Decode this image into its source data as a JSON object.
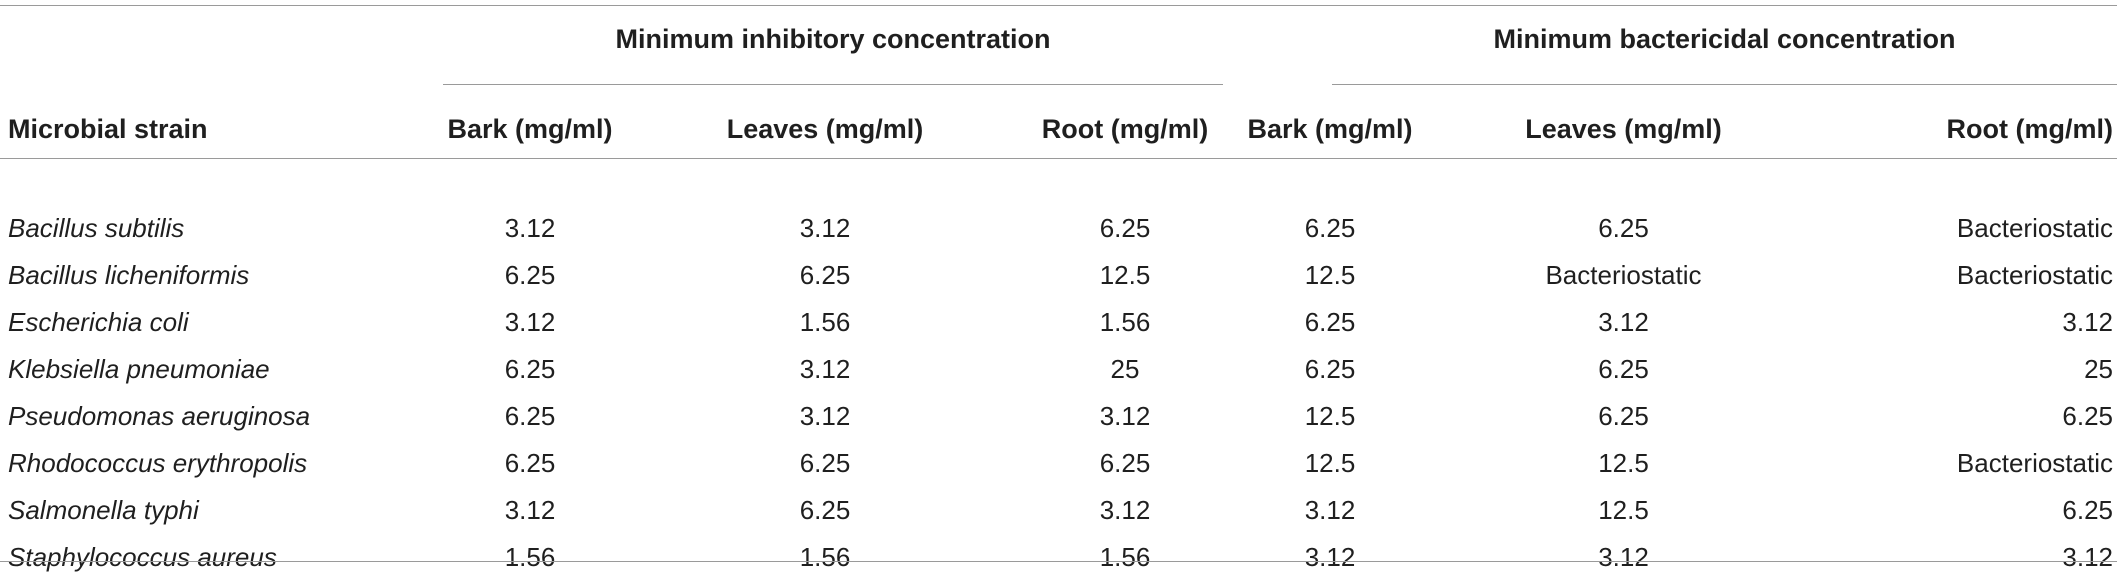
{
  "groups": {
    "mic": "Minimum inhibitory concentration",
    "mbc": "Minimum bactericidal concentration"
  },
  "columns": {
    "strain": "Microbial strain",
    "mic_bark": "Bark (mg/ml)",
    "mic_leaves": "Leaves (mg/ml)",
    "mic_root": "Root (mg/ml)",
    "mbc_bark": "Bark (mg/ml)",
    "mbc_leaves": "Leaves (mg/ml)",
    "mbc_root": "Root (mg/ml)"
  },
  "rows": [
    {
      "strain": "Bacillus subtilis",
      "mic_bark": "3.12",
      "mic_leaves": "3.12",
      "mic_root": "6.25",
      "mbc_bark": "6.25",
      "mbc_leaves": "6.25",
      "mbc_root": "Bacteriostatic"
    },
    {
      "strain": "Bacillus licheniformis",
      "mic_bark": "6.25",
      "mic_leaves": "6.25",
      "mic_root": "12.5",
      "mbc_bark": "12.5",
      "mbc_leaves": "Bacteriostatic",
      "mbc_root": "Bacteriostatic"
    },
    {
      "strain": "Escherichia coli",
      "mic_bark": "3.12",
      "mic_leaves": "1.56",
      "mic_root": "1.56",
      "mbc_bark": "6.25",
      "mbc_leaves": "3.12",
      "mbc_root": "3.12"
    },
    {
      "strain": "Klebsiella pneumoniae",
      "mic_bark": "6.25",
      "mic_leaves": "3.12",
      "mic_root": "25",
      "mbc_bark": "6.25",
      "mbc_leaves": "6.25",
      "mbc_root": "25"
    },
    {
      "strain": "Pseudomonas aeruginosa",
      "mic_bark": "6.25",
      "mic_leaves": "3.12",
      "mic_root": "3.12",
      "mbc_bark": "12.5",
      "mbc_leaves": "6.25",
      "mbc_root": "6.25"
    },
    {
      "strain": "Rhodococcus erythropolis",
      "mic_bark": "6.25",
      "mic_leaves": "6.25",
      "mic_root": "6.25",
      "mbc_bark": "12.5",
      "mbc_leaves": "12.5",
      "mbc_root": "Bacteriostatic"
    },
    {
      "strain": "Salmonella typhi",
      "mic_bark": "3.12",
      "mic_leaves": "6.25",
      "mic_root": "3.12",
      "mbc_bark": "3.12",
      "mbc_leaves": "12.5",
      "mbc_root": "6.25"
    },
    {
      "strain": "Staphylococcus aureus",
      "mic_bark": "1.56",
      "mic_leaves": "1.56",
      "mic_root": "1.56",
      "mbc_bark": "3.12",
      "mbc_leaves": "3.12",
      "mbc_root": "3.12"
    }
  ]
}
